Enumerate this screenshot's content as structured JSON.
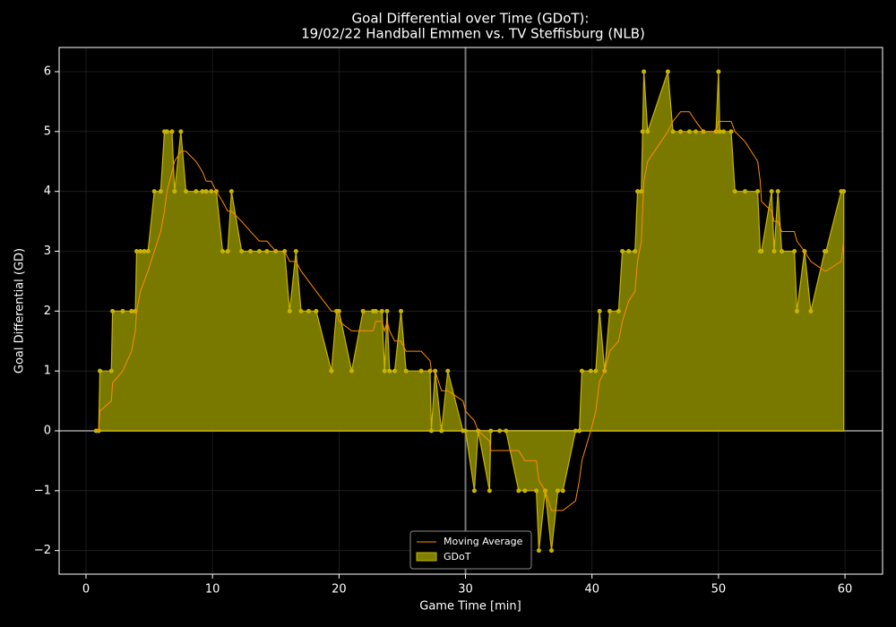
{
  "chart_data": {
    "type": "area",
    "title": "Goal Differential over Time (GDoT):",
    "subtitle": "19/02/22 Handball Emmen  vs.  TV Steffisburg (NLB)",
    "xlabel": "Game Time [min]",
    "ylabel": "Goal Differential (GD)",
    "x": [
      0.8,
      1.0,
      1.1,
      2.0,
      2.1,
      2.9,
      3.6,
      3.9,
      4.0,
      4.3,
      4.6,
      4.9,
      5.4,
      5.9,
      6.2,
      6.4,
      6.8,
      7.0,
      7.5,
      7.9,
      8.7,
      9.2,
      9.5,
      9.9,
      10.3,
      10.8,
      11.2,
      11.5,
      12.3,
      13.0,
      13.7,
      14.3,
      15.0,
      15.7,
      16.1,
      16.6,
      17.0,
      17.6,
      18.2,
      19.4,
      19.8,
      20.0,
      21.0,
      21.9,
      22.7,
      22.9,
      23.4,
      23.6,
      23.8,
      24.0,
      24.4,
      24.9,
      25.3,
      26.5,
      27.2,
      27.3,
      27.6,
      28.1,
      28.6,
      29.8,
      30.0,
      30.7,
      31.0,
      31.9,
      32.0,
      32.7,
      33.2,
      34.2,
      34.7,
      35.6,
      35.8,
      36.3,
      36.8,
      37.3,
      37.7,
      38.7,
      39.0,
      39.2,
      39.9,
      40.3,
      40.6,
      41.0,
      41.4,
      42.1,
      42.4,
      42.9,
      43.4,
      43.6,
      43.9,
      44.0,
      44.1,
      44.4,
      46.0,
      46.4,
      47.0,
      47.7,
      48.2,
      48.8,
      49.8,
      50.0,
      50.1,
      50.4,
      51.0,
      51.3,
      52.1,
      53.1,
      53.3,
      53.4,
      54.2,
      54.4,
      54.7,
      55.0,
      56.0,
      56.2,
      56.8,
      57.3,
      58.4,
      58.5,
      59.7,
      59.9
    ],
    "series": [
      {
        "name": "Moving Average",
        "color": "#ff8c00",
        "values": [
          0,
          0,
          0.33,
          0.5,
          0.8,
          1.0,
          1.33,
          1.67,
          2.0,
          2.33,
          2.5,
          2.67,
          3.0,
          3.33,
          3.67,
          4.0,
          4.33,
          4.5,
          4.67,
          4.67,
          4.5,
          4.33,
          4.17,
          4.17,
          4.0,
          3.83,
          3.67,
          3.67,
          3.5,
          3.33,
          3.17,
          3.17,
          3.0,
          3.0,
          2.83,
          2.83,
          2.67,
          2.5,
          2.33,
          2.0,
          2.0,
          1.83,
          1.67,
          1.67,
          1.67,
          1.83,
          1.83,
          1.67,
          1.83,
          1.67,
          1.5,
          1.5,
          1.33,
          1.33,
          1.17,
          1.0,
          1.0,
          0.67,
          0.67,
          0.5,
          0.33,
          0.17,
          0,
          -0.17,
          -0.33,
          -0.33,
          -0.33,
          -0.33,
          -0.5,
          -0.5,
          -0.83,
          -1.0,
          -1.33,
          -1.33,
          -1.33,
          -1.17,
          -0.83,
          -0.5,
          0,
          0.33,
          0.83,
          1.0,
          1.33,
          1.5,
          1.83,
          2.17,
          2.33,
          2.83,
          3.17,
          3.67,
          4.17,
          4.5,
          5.0,
          5.17,
          5.33,
          5.33,
          5.17,
          5.0,
          5.0,
          5.17,
          5.17,
          5.17,
          5.17,
          5.0,
          4.83,
          4.5,
          4.17,
          3.83,
          3.67,
          3.5,
          3.5,
          3.33,
          3.33,
          3.17,
          3.0,
          2.83,
          2.67,
          2.67,
          2.83,
          3.17
        ]
      },
      {
        "name": "GDoT",
        "color": "#808000",
        "marker_color": "#c8b400",
        "values": [
          0,
          0,
          1,
          1,
          2,
          2,
          2,
          2,
          3,
          3,
          3,
          3,
          4,
          4,
          5,
          5,
          5,
          4,
          5,
          4,
          4,
          4,
          4,
          4,
          4,
          3,
          3,
          4,
          3,
          3,
          3,
          3,
          3,
          3,
          2,
          3,
          2,
          2,
          2,
          1,
          2,
          2,
          1,
          2,
          2,
          2,
          2,
          1,
          2,
          1,
          1,
          2,
          1,
          1,
          1,
          0,
          1,
          0,
          1,
          0,
          0,
          -1,
          0,
          -1,
          0,
          0,
          0,
          -1,
          -1,
          -1,
          -2,
          -1,
          -2,
          -1,
          -1,
          0,
          0,
          1,
          1,
          1,
          2,
          1,
          2,
          2,
          3,
          3,
          3,
          4,
          4,
          5,
          6,
          5,
          6,
          5,
          5,
          5,
          5,
          5,
          5,
          6,
          5,
          5,
          5,
          4,
          4,
          4,
          3,
          3,
          4,
          3,
          4,
          3,
          3,
          2,
          3,
          2,
          3,
          3,
          4,
          4
        ]
      }
    ],
    "halftime": 30,
    "xlim": [
      -2.125,
      62.97
    ],
    "ylim": [
      -2.394,
      6.404
    ],
    "xticks": [
      0,
      10,
      20,
      30,
      40,
      50,
      60
    ],
    "yticks": [
      {
        "value": -2,
        "label": "−2"
      },
      {
        "value": -1,
        "label": "−1"
      },
      0,
      1,
      2,
      3,
      4,
      5,
      6
    ],
    "grid": true,
    "legend": "lower center"
  }
}
